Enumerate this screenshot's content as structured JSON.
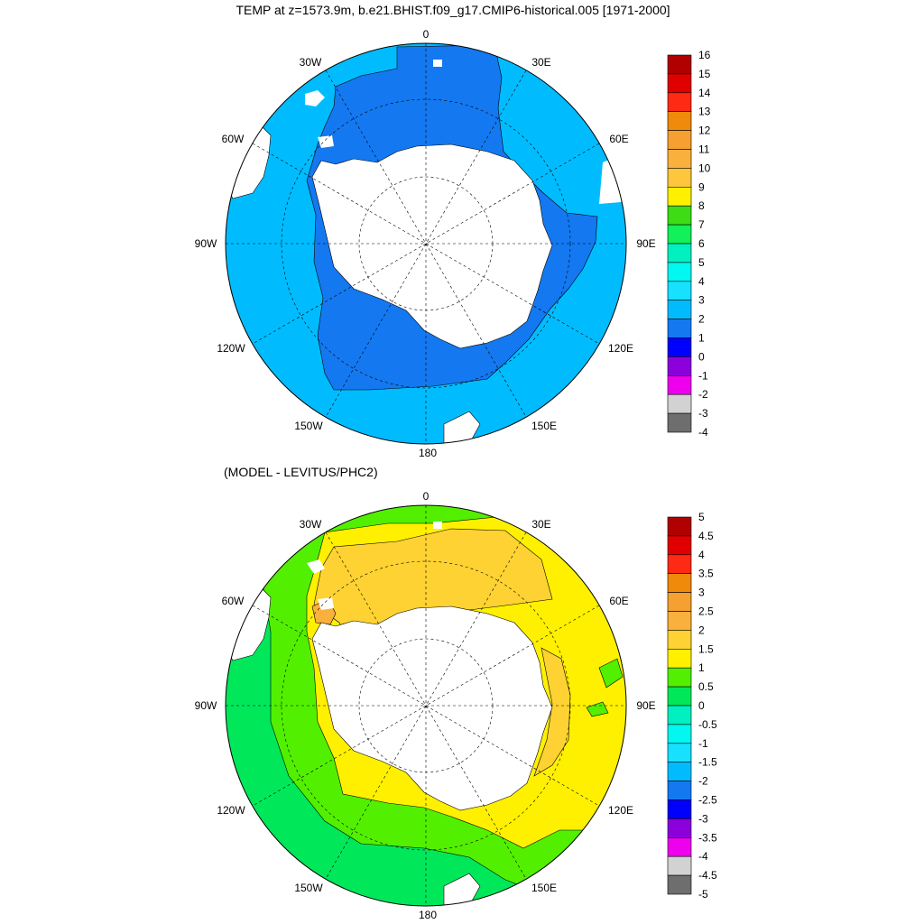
{
  "panels": [
    {
      "id": "temp",
      "title": "TEMP at z=1573.9m, b.e21.BHIST.f09_g17.CMIP6-historical.005 [1971-2000]",
      "lon_labels": [
        "0",
        "30E",
        "60E",
        "90E",
        "120E",
        "150E",
        "180",
        "150W",
        "120W",
        "90W",
        "60W",
        "30W"
      ],
      "colorbar": {
        "labels": [
          "16",
          "15",
          "14",
          "13",
          "12",
          "11",
          "10",
          "9",
          "8",
          "7",
          "6",
          "5",
          "4",
          "3",
          "2",
          "1",
          "0",
          "-1",
          "-2",
          "-3",
          "-4"
        ],
        "colors": [
          "#b00000",
          "#e00000",
          "#ff2a14",
          "#f08a0a",
          "#f5a030",
          "#fab03c",
          "#fdc63c",
          "#fff000",
          "#3ddc14",
          "#12f05a",
          "#00f0c0",
          "#00f8f0",
          "#18e0ff",
          "#00bcff",
          "#1478f0",
          "#0000ff",
          "#8c00dc",
          "#ee00ee",
          "#d2d2d2",
          "#6e6e6e"
        ]
      },
      "map_colors": {
        "ocean": "#00bcff",
        "deep": "#1478f0",
        "land": "#ffffff"
      }
    },
    {
      "id": "diff",
      "title": "(MODEL - LEVITUS/PHC2)",
      "lon_labels": [
        "0",
        "30E",
        "60E",
        "90E",
        "120E",
        "150E",
        "180",
        "150W",
        "120W",
        "90W",
        "60W",
        "30W"
      ],
      "colorbar": {
        "labels": [
          "5",
          "4.5",
          "4",
          "3.5",
          "3",
          "2.5",
          "2",
          "1.5",
          "1",
          "0.5",
          "0",
          "-0.5",
          "-1",
          "-1.5",
          "-2",
          "-2.5",
          "-3",
          "-3.5",
          "-4",
          "-4.5",
          "-5"
        ],
        "colors": [
          "#b00000",
          "#e00000",
          "#ff2a14",
          "#f08a0a",
          "#f5a030",
          "#fab03c",
          "#fdd232",
          "#fff000",
          "#52f000",
          "#00e85a",
          "#00f0c0",
          "#00f8f0",
          "#18e0ff",
          "#00bcff",
          "#1478f0",
          "#0000ff",
          "#8c00dc",
          "#ee00ee",
          "#d2d2d2",
          "#6e6e6e"
        ]
      },
      "map_colors": {
        "outer": "#00e85a",
        "mid": "#52f000",
        "warm": "#fff000",
        "warmer": "#fdd232",
        "warmest": "#fab03c",
        "land": "#ffffff"
      }
    }
  ]
}
